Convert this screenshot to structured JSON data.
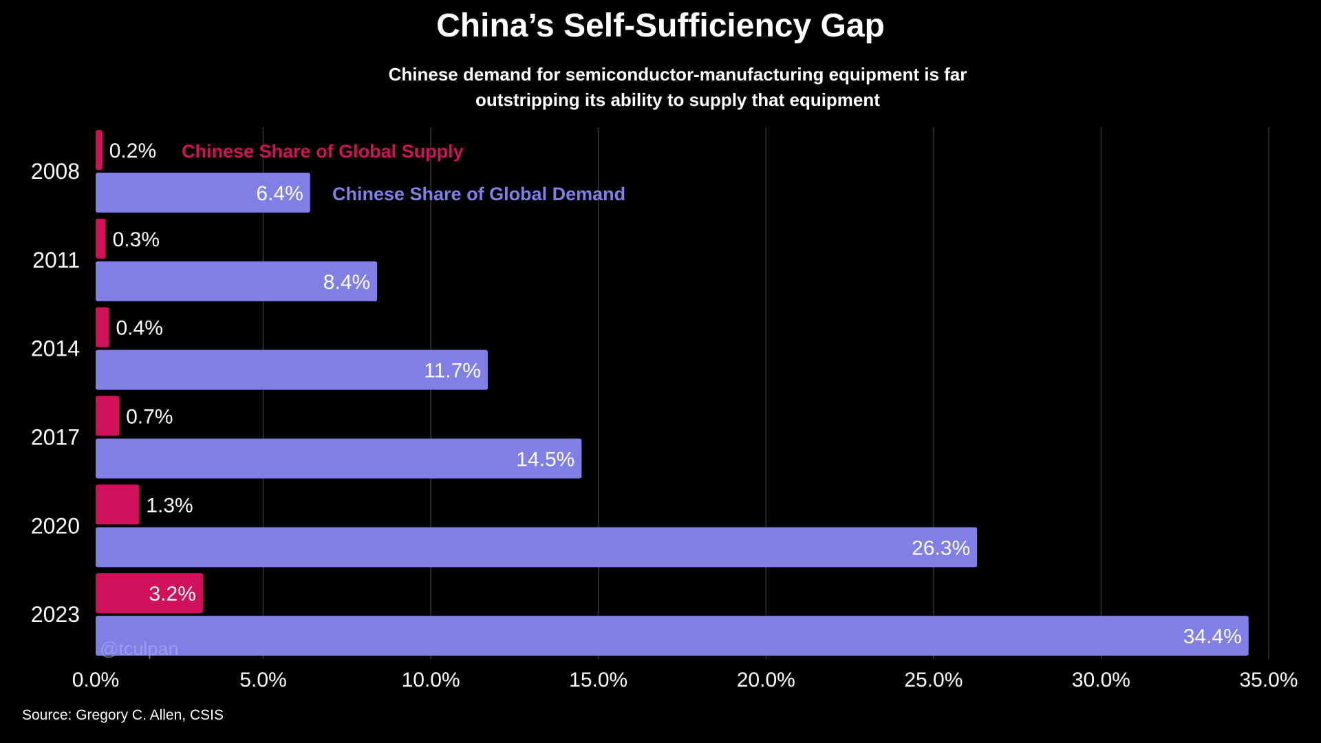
{
  "chart_data": {
    "type": "bar",
    "orientation": "horizontal",
    "title": "China’s Self-Sufficiency Gap",
    "subtitle_lines": [
      "Chinese demand for semiconductor-manufacturing equipment is far",
      "outstripping its ability to supply that equipment"
    ],
    "categories": [
      "2008",
      "2011",
      "2014",
      "2017",
      "2020",
      "2023"
    ],
    "series": [
      {
        "name": "Chinese Share of Global Supply",
        "color": "#d1105a",
        "values": [
          0.2,
          0.3,
          0.4,
          0.7,
          1.3,
          3.2
        ],
        "labels": [
          "0.2%",
          "0.3%",
          "0.4%",
          "0.7%",
          "1.3%",
          "3.2%"
        ]
      },
      {
        "name": "Chinese Share of Global Demand",
        "color": "#7f7fe6",
        "values": [
          6.4,
          8.4,
          11.7,
          14.5,
          26.3,
          34.4
        ],
        "labels": [
          "6.4%",
          "8.4%",
          "11.7%",
          "14.5%",
          "26.3%",
          "34.4%"
        ]
      }
    ],
    "xlim": [
      0,
      35
    ],
    "xticks": [
      "0.0%",
      "5.0%",
      "10.0%",
      "15.0%",
      "20.0%",
      "25.0%",
      "30.0%",
      "35.0%"
    ],
    "grid": true,
    "watermark": "@tculpan",
    "source": "Source: Gregory C. Allen, CSIS"
  }
}
